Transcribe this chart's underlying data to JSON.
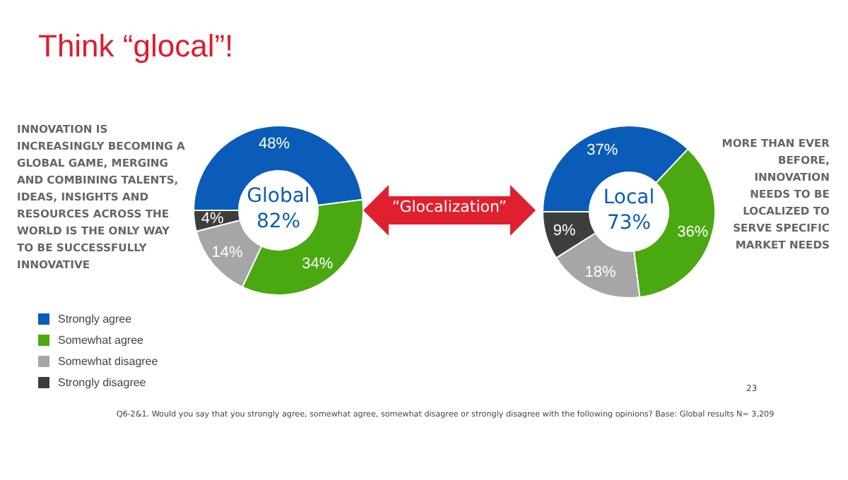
{
  "chart_data": [
    {
      "type": "donut",
      "title": "Think “glocal”!",
      "categories": [
        "Strongly agree",
        "Somewhat agree",
        "Somewhat disagree",
        "Strongly disagree"
      ],
      "values": [
        48,
        34,
        14,
        4
      ],
      "colors": [
        "#0a5cb8",
        "#4aa810",
        "#a6a6a6",
        "#3d3d3d"
      ],
      "value_labels": [
        "48%",
        "34%",
        "14%",
        "4%"
      ],
      "legend": "bottom left",
      "annotations": [
        "Global 82%",
        "INNOVATION IS INCREASINGLY BECOMING A GLOBAL GAME, MERGING AND COMBINING TALENTS, IDEAS, INSIGHTS AND RESOURCES ACROSS THE WORLD IS THE ONLY WAY TO BE SUCCESSFULLY INNOVATIVE",
        "“Glocalization”",
        "Q6-2&1. Would you say that you strongly agree, somewhat agree, somewhat disagree or strongly disagree with the following opinions? Base: Global results N= 3,209",
        "23"
      ]
    },
    {
      "type": "donut",
      "categories": [
        null,
        null,
        null,
        null
      ],
      "values": [
        37,
        36,
        18,
        9
      ],
      "colors": [
        "#0a5cb8",
        "#4aa810",
        "#a6a6a6",
        "#3d3d3d"
      ],
      "value_labels": [
        "37%",
        "36%",
        "18%",
        "9%"
      ],
      "annotations": [
        "Local 73%",
        "MORE THAN EVER BEFORE, INNOVATION NEEDS TO BE LOCALIZED TO SERVE SPECIFIC MARKET NEEDS"
      ]
    }
  ]
}
